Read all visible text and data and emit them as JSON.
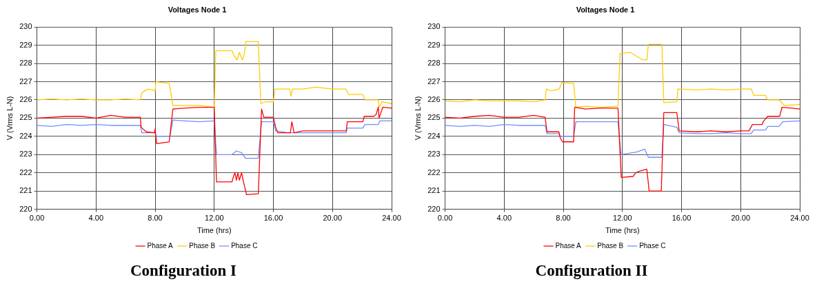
{
  "chart_data": [
    {
      "type": "line",
      "title": "Voltages Node 1",
      "xlabel": "Time (hrs)",
      "ylabel": "V (Vrms L-N)",
      "xlim": [
        0,
        24
      ],
      "xticks": [
        {
          "value": 0,
          "label": "0.00"
        },
        {
          "value": 4,
          "label": "4.00"
        },
        {
          "value": 8,
          "label": "8.00"
        },
        {
          "value": 12,
          "label": "12.00"
        },
        {
          "value": 16,
          "label": "16.00"
        },
        {
          "value": 20,
          "label": "20.00"
        },
        {
          "value": 24,
          "label": "24.00"
        }
      ],
      "ylim": [
        220,
        230
      ],
      "yticks": [
        220,
        221,
        222,
        223,
        224,
        225,
        226,
        227,
        228,
        229,
        230
      ],
      "grid": true,
      "legend": "bottom",
      "marker": "none",
      "line_style": "solid",
      "annotations": [
        "Configuration I"
      ],
      "series": [
        {
          "name": "Phase A",
          "color": "#ff0000",
          "x": [
            0,
            1,
            2,
            3,
            4,
            5,
            6,
            7.0,
            7.05,
            7.4,
            7.95,
            8.0,
            8.1,
            8.95,
            9.2,
            10,
            11,
            12.0,
            12.15,
            13.2,
            13.3,
            13.4,
            13.5,
            13.6,
            13.7,
            13.85,
            13.95,
            14.18,
            14.98,
            15.2,
            15.35,
            16.0,
            16.15,
            16.3,
            17.15,
            17.25,
            17.4,
            18,
            19,
            20,
            20.93,
            21.0,
            22.05,
            22.15,
            22.8,
            22.95,
            23.1,
            23.15,
            23.4,
            24
          ],
          "values": [
            225.0,
            225.05,
            225.1,
            225.1,
            225.0,
            225.15,
            225.05,
            225.05,
            224.5,
            224.25,
            224.2,
            224.4,
            223.6,
            223.7,
            225.5,
            225.55,
            225.6,
            225.6,
            221.5,
            221.5,
            221.8,
            222.0,
            221.6,
            222.0,
            221.6,
            222.0,
            221.6,
            220.8,
            220.85,
            225.5,
            225.05,
            225.05,
            224.5,
            224.2,
            224.2,
            224.8,
            224.2,
            224.3,
            224.3,
            224.3,
            224.3,
            224.8,
            224.8,
            225.1,
            225.1,
            225.2,
            225.6,
            225.0,
            225.6,
            225.55
          ]
        },
        {
          "name": "Phase B",
          "color": "#ffcc00",
          "x": [
            0,
            1,
            2,
            3,
            4,
            5,
            6,
            7.0,
            7.1,
            7.5,
            8.0,
            8.05,
            8.5,
            8.95,
            9.2,
            10,
            11,
            12.0,
            12.1,
            13.2,
            13.35,
            13.55,
            13.7,
            13.9,
            14.0,
            14.15,
            14.98,
            15.15,
            15.5,
            16.0,
            16.1,
            17.1,
            17.2,
            17.3,
            18,
            18.85,
            19.97,
            20.9,
            21.1,
            22.05,
            22.2,
            23.1,
            23.15,
            23.35,
            24
          ],
          "values": [
            226.0,
            226.05,
            226.0,
            226.05,
            226.0,
            226.0,
            226.05,
            226.0,
            226.4,
            226.6,
            226.5,
            227.0,
            226.95,
            226.9,
            225.7,
            225.7,
            225.7,
            225.6,
            228.7,
            228.7,
            228.4,
            228.2,
            228.6,
            228.2,
            228.4,
            229.2,
            229.2,
            225.8,
            225.9,
            225.9,
            226.6,
            226.6,
            226.2,
            226.6,
            226.6,
            226.7,
            226.6,
            226.6,
            226.3,
            226.3,
            226.0,
            226.0,
            225.6,
            225.9,
            225.8
          ]
        },
        {
          "name": "Phase C",
          "color": "#6f8fff",
          "x": [
            0,
            1,
            2,
            3,
            4,
            5,
            6,
            7.0,
            7.1,
            8.0,
            8.05,
            9.0,
            9.2,
            10,
            11,
            12.0,
            12.15,
            13.2,
            13.5,
            13.85,
            14.1,
            14.98,
            15.2,
            16.0,
            16.15,
            17,
            18,
            19,
            20,
            20.93,
            20.98,
            22.05,
            22.2,
            23.1,
            23.2,
            24
          ],
          "values": [
            224.6,
            224.55,
            224.65,
            224.6,
            224.65,
            224.6,
            224.6,
            224.6,
            224.2,
            224.2,
            224.0,
            224.0,
            224.9,
            224.85,
            224.8,
            224.85,
            223.0,
            223.0,
            223.2,
            223.1,
            222.8,
            222.8,
            224.8,
            224.8,
            224.3,
            224.2,
            224.2,
            224.2,
            224.2,
            224.2,
            224.45,
            224.45,
            224.65,
            224.65,
            224.85,
            224.85
          ]
        }
      ]
    },
    {
      "type": "line",
      "title": "Voltages Node 1",
      "xlabel": "Time (hrs)",
      "ylabel": "V (Vrms L-N)",
      "xlim": [
        0,
        24
      ],
      "xticks": [
        {
          "value": 0,
          "label": "0.00"
        },
        {
          "value": 4,
          "label": "4.00"
        },
        {
          "value": 8,
          "label": "8.00"
        },
        {
          "value": 12,
          "label": "12.00"
        },
        {
          "value": 16,
          "label": "16.00"
        },
        {
          "value": 20,
          "label": "20.00"
        },
        {
          "value": 24,
          "label": "24.00"
        }
      ],
      "ylim": [
        220,
        230
      ],
      "yticks": [
        220,
        221,
        222,
        223,
        224,
        225,
        226,
        227,
        228,
        229,
        230
      ],
      "grid": true,
      "legend": "bottom",
      "marker": "none",
      "line_style": "solid",
      "annotations": [
        "Configuration II"
      ],
      "series": [
        {
          "name": "Phase A",
          "color": "#ff0000",
          "x": [
            0,
            1,
            2,
            3,
            4,
            5,
            6,
            6.77,
            6.9,
            7.7,
            7.8,
            7.95,
            8.7,
            8.77,
            9.5,
            10.5,
            11.7,
            11.92,
            12.72,
            12.9,
            13.2,
            13.65,
            13.81,
            14.63,
            14.8,
            15.68,
            15.84,
            17,
            18,
            19,
            20,
            20.56,
            20.8,
            21.45,
            21.52,
            21.84,
            22.64,
            22.8,
            24
          ],
          "values": [
            225.05,
            225.0,
            225.1,
            225.15,
            225.05,
            225.05,
            225.15,
            225.05,
            224.25,
            224.25,
            223.9,
            223.7,
            223.7,
            225.6,
            225.5,
            225.55,
            225.55,
            221.75,
            221.8,
            222.0,
            222.1,
            222.2,
            221.0,
            221.0,
            225.3,
            225.3,
            224.3,
            224.25,
            224.3,
            224.25,
            224.3,
            224.3,
            224.65,
            224.65,
            224.8,
            225.1,
            225.1,
            225.6,
            225.5
          ]
        },
        {
          "name": "Phase B",
          "color": "#ffcc00",
          "x": [
            0,
            1,
            2,
            3,
            4,
            5,
            6,
            6.77,
            6.85,
            7.17,
            7.73,
            7.9,
            8.7,
            8.85,
            9.5,
            10.5,
            11.7,
            11.84,
            12.56,
            13.36,
            13.65,
            13.76,
            14.67,
            14.8,
            15.68,
            15.76,
            17,
            18,
            19,
            20,
            20.72,
            20.88,
            21.68,
            21.84,
            22.6,
            22.96,
            24
          ],
          "values": [
            225.95,
            225.9,
            226.0,
            225.95,
            225.95,
            225.95,
            225.9,
            226.0,
            226.6,
            226.5,
            226.6,
            226.95,
            226.9,
            225.6,
            225.65,
            225.6,
            225.65,
            228.55,
            228.6,
            228.2,
            228.2,
            229.05,
            229.05,
            225.85,
            225.9,
            226.6,
            226.55,
            226.6,
            226.55,
            226.6,
            226.6,
            226.25,
            226.25,
            226.0,
            226.0,
            225.7,
            225.75
          ]
        },
        {
          "name": "Phase C",
          "color": "#6f8fff",
          "x": [
            0,
            1,
            2,
            3,
            4,
            5,
            6,
            6.77,
            6.9,
            7.7,
            7.8,
            8.7,
            8.85,
            9.5,
            10.5,
            11.7,
            11.9,
            13.0,
            13.5,
            13.76,
            14.67,
            14.8,
            15.68,
            15.84,
            17,
            18,
            19,
            20,
            20.72,
            20.88,
            21.68,
            21.84,
            22.6,
            22.85,
            24
          ],
          "values": [
            224.6,
            224.55,
            224.6,
            224.55,
            224.65,
            224.6,
            224.6,
            224.6,
            224.15,
            224.15,
            224.0,
            224.0,
            224.8,
            224.8,
            224.8,
            224.8,
            223.0,
            223.15,
            223.3,
            222.85,
            222.85,
            224.65,
            224.5,
            224.2,
            224.15,
            224.15,
            224.2,
            224.15,
            224.15,
            224.35,
            224.35,
            224.55,
            224.55,
            224.8,
            224.85
          ]
        }
      ]
    }
  ]
}
